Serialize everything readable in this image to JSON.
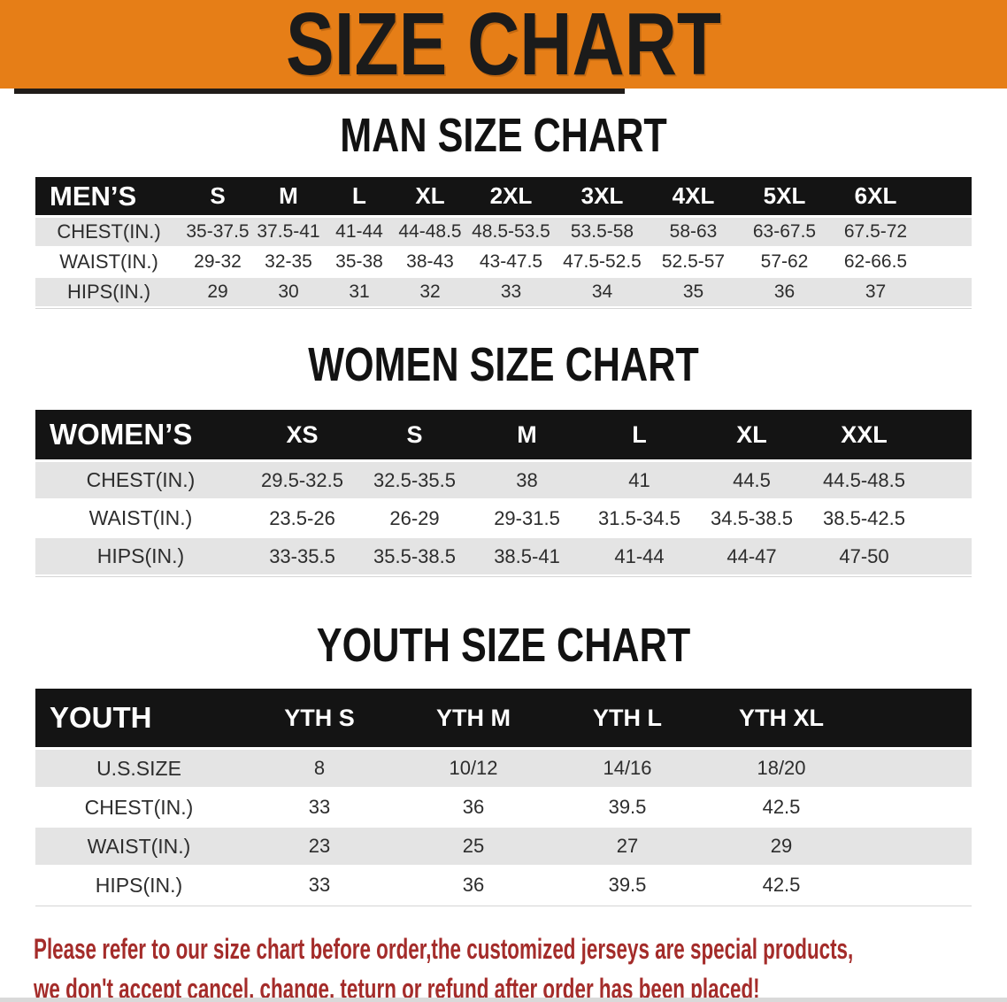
{
  "banner": {
    "title": "SIZE CHART"
  },
  "colors": {
    "banner_bg": "#E67E17",
    "header_bar_bg": "#141414",
    "row_gray": "#E4E4E4",
    "row_white": "#FFFFFF",
    "notice_red": "#A42C2A"
  },
  "sections": [
    {
      "heading": "MAN SIZE CHART",
      "table": {
        "header": [
          "MEN’S",
          "S",
          "M",
          "L",
          "XL",
          "2XL",
          "3XL",
          "4XL",
          "5XL",
          "6XL"
        ],
        "rows": [
          [
            "CHEST(IN.)",
            "35-37.5",
            "37.5-41",
            "41-44",
            "44-48.5",
            "48.5-53.5",
            "53.5-58",
            "58-63",
            "63-67.5",
            "67.5-72"
          ],
          [
            "WAIST(IN.)",
            "29-32",
            "32-35",
            "35-38",
            "38-43",
            "43-47.5",
            "47.5-52.5",
            "52.5-57",
            "57-62",
            "62-66.5"
          ],
          [
            "HIPS(IN.)",
            "29",
            "30",
            "31",
            "32",
            "33",
            "34",
            "35",
            "36",
            "37"
          ]
        ]
      }
    },
    {
      "heading": "WOMEN SIZE CHART",
      "table": {
        "header": [
          "WOMEN’S",
          "XS",
          "S",
          "M",
          "L",
          "XL",
          "XXL"
        ],
        "rows": [
          [
            "CHEST(IN.)",
            "29.5-32.5",
            "32.5-35.5",
            "38",
            "41",
            "44.5",
            "44.5-48.5"
          ],
          [
            "WAIST(IN.)",
            "23.5-26",
            "26-29",
            "29-31.5",
            "31.5-34.5",
            "34.5-38.5",
            "38.5-42.5"
          ],
          [
            "HIPS(IN.)",
            "33-35.5",
            "35.5-38.5",
            "38.5-41",
            "41-44",
            "44-47",
            "47-50"
          ]
        ]
      }
    },
    {
      "heading": "YOUTH SIZE CHART",
      "table": {
        "header": [
          "YOUTH",
          "YTH S",
          "YTH M",
          "YTH L",
          "YTH XL"
        ],
        "rows": [
          [
            "U.S.SIZE",
            "8",
            "10/12",
            "14/16",
            "18/20"
          ],
          [
            "CHEST(IN.)",
            "33",
            "36",
            "39.5",
            "42.5"
          ],
          [
            "WAIST(IN.)",
            "23",
            "25",
            "27",
            "29"
          ],
          [
            "HIPS(IN.)",
            "33",
            "36",
            "39.5",
            "42.5"
          ]
        ]
      }
    }
  ],
  "footer": {
    "line1": "Please refer to our size chart before order,the customized jerseys are special products,",
    "line2": "we don't accept cancel, change, teturn or refund after order has been placed!"
  }
}
